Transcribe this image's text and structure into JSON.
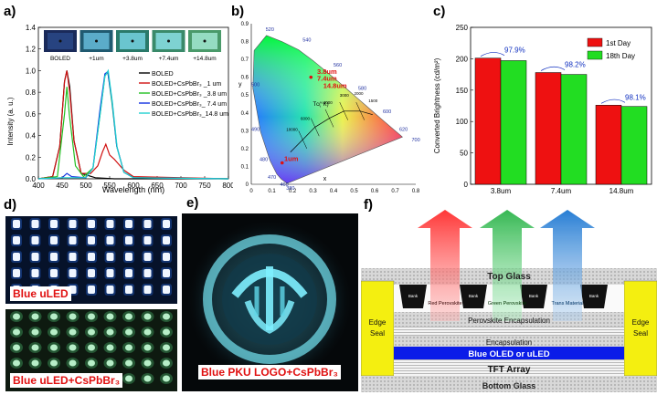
{
  "panels": {
    "a": "a)",
    "b": "b)",
    "c": "c)",
    "d": "d)",
    "e": "e)",
    "f": "f)"
  },
  "panel_a": {
    "inset_labels": [
      "BOLED",
      "+1um",
      "+3.8um",
      "+7.4um",
      "+14.8um"
    ],
    "legend": [
      "BOLED",
      "BOLED+CsPbBr₃ _1 um",
      "BOLED+CsPbBr₃ _3.8 um",
      "BOLED+CsPbBr₃_ 7.4 um",
      "BOLED+CsPbBr₃_14.8 um"
    ],
    "colors": [
      "#000000",
      "#d01010",
      "#22c022",
      "#1030e0",
      "#20d0d0"
    ]
  },
  "panel_b": {
    "xlabel": "x",
    "ylabel": "y",
    "ticks": [
      "0",
      "0.1",
      "0.2",
      "0.3",
      "0.4",
      "0.5",
      "0.6",
      "0.7",
      "0.8"
    ],
    "yticks": [
      "0.9",
      "0.8",
      "0.7",
      "0.6",
      "0.5",
      "0.4",
      "0.3",
      "0.2",
      "0.1",
      "0"
    ],
    "wavelengths": [
      "520",
      "540",
      "560",
      "580",
      "600",
      "620",
      "700",
      "500",
      "490",
      "480",
      "470",
      "460",
      "380"
    ],
    "tc_label": "Tᴄ(°K)",
    "tc_values": [
      "10000",
      "6000",
      "4000",
      "3000",
      "2000",
      "1500"
    ],
    "annotations": [
      "3.8um",
      "7.4um",
      "14.8um",
      "1um"
    ]
  },
  "panel_d": {
    "top_label": "Blue uLED",
    "bottom_label": "Blue uLED+CsPbBr₃"
  },
  "panel_e": {
    "label": "Blue PKU LOGO+CsPbBr₃"
  },
  "panel_f": {
    "top_glass": "Top Glass",
    "bank": "Bank",
    "red": "Red Perovskite",
    "green": "Green Perovskite",
    "trans": "Trans Material",
    "perov_encap": "Perovskite Encapsulation",
    "encap": "Encapsulation",
    "oled": "Blue OLED or uLED",
    "tft": "TFT Array",
    "bottom_glass": "Bottom Glass",
    "edge_seal": [
      "Edge",
      "Seal"
    ]
  },
  "chart_data": [
    {
      "type": "line",
      "title": "",
      "xlabel": "Wavelength (nm)",
      "ylabel": "Intensity (a. u.)",
      "xlim": [
        400,
        800
      ],
      "ylim": [
        0,
        1.4
      ],
      "x_ticks": [
        400,
        450,
        500,
        550,
        600,
        650,
        700,
        750,
        800
      ],
      "y_ticks": [
        0.0,
        0.2,
        0.4,
        0.6,
        0.8,
        1.0,
        1.2,
        1.4
      ],
      "series": [
        {
          "name": "BOLED",
          "points": [
            [
              400,
              0
            ],
            [
              430,
              0.02
            ],
            [
              445,
              0.3
            ],
            [
              455,
              0.9
            ],
            [
              460,
              1.0
            ],
            [
              466,
              0.85
            ],
            [
              475,
              0.35
            ],
            [
              490,
              0.05
            ],
            [
              520,
              0.01
            ],
            [
              560,
              0
            ],
            [
              800,
              0
            ]
          ]
        },
        {
          "name": "BOLED+CsPbBr₃ _1 um",
          "points": [
            [
              400,
              0
            ],
            [
              430,
              0.02
            ],
            [
              445,
              0.3
            ],
            [
              455,
              0.9
            ],
            [
              460,
              1.0
            ],
            [
              466,
              0.8
            ],
            [
              475,
              0.35
            ],
            [
              490,
              0.05
            ],
            [
              510,
              0.05
            ],
            [
              525,
              0.12
            ],
            [
              535,
              0.25
            ],
            [
              542,
              0.32
            ],
            [
              550,
              0.22
            ],
            [
              560,
              0.18
            ],
            [
              580,
              0.08
            ],
            [
              600,
              0.02
            ],
            [
              800,
              0
            ]
          ]
        },
        {
          "name": "BOLED+CsPbBr₃ _3.8 um",
          "points": [
            [
              400,
              0
            ],
            [
              440,
              0.02
            ],
            [
              455,
              0.6
            ],
            [
              460,
              0.85
            ],
            [
              465,
              0.6
            ],
            [
              478,
              0.12
            ],
            [
              495,
              0.02
            ],
            [
              515,
              0.1
            ],
            [
              530,
              0.6
            ],
            [
              540,
              0.95
            ],
            [
              546,
              0.99
            ],
            [
              555,
              0.7
            ],
            [
              565,
              0.3
            ],
            [
              580,
              0.06
            ],
            [
              600,
              0.01
            ],
            [
              800,
              0
            ]
          ]
        },
        {
          "name": "BOLED+CsPbBr₃_ 7.4 um",
          "points": [
            [
              400,
              0
            ],
            [
              450,
              0.01
            ],
            [
              460,
              0.05
            ],
            [
              470,
              0.02
            ],
            [
              500,
              0.01
            ],
            [
              515,
              0.1
            ],
            [
              530,
              0.65
            ],
            [
              540,
              0.97
            ],
            [
              546,
              0.99
            ],
            [
              555,
              0.72
            ],
            [
              565,
              0.3
            ],
            [
              580,
              0.06
            ],
            [
              600,
              0.01
            ],
            [
              800,
              0
            ]
          ]
        },
        {
          "name": "BOLED+CsPbBr₃_14.8 um",
          "points": [
            [
              400,
              0
            ],
            [
              450,
              0.01
            ],
            [
              500,
              0.01
            ],
            [
              515,
              0.1
            ],
            [
              530,
              0.6
            ],
            [
              540,
              0.95
            ],
            [
              547,
              1.0
            ],
            [
              556,
              0.7
            ],
            [
              566,
              0.28
            ],
            [
              580,
              0.06
            ],
            [
              600,
              0.01
            ],
            [
              800,
              0
            ]
          ]
        }
      ]
    },
    {
      "type": "bar",
      "title": "",
      "xlabel": "",
      "ylabel": "Converted Brightness (cd/m²)",
      "ylim": [
        0,
        250
      ],
      "y_ticks": [
        0,
        50,
        100,
        150,
        200,
        250
      ],
      "categories": [
        "3.8um",
        "7.4um",
        "14.8um"
      ],
      "series": [
        {
          "name": "1st Day",
          "color": "#ee1111",
          "values": [
            201,
            178,
            126
          ]
        },
        {
          "name": "18th Day",
          "color": "#22dd22",
          "values": [
            197,
            175,
            124
          ]
        }
      ],
      "annotations": [
        "97.9%",
        "98.2%",
        "98.1%"
      ],
      "legend_position": "top-right"
    }
  ]
}
